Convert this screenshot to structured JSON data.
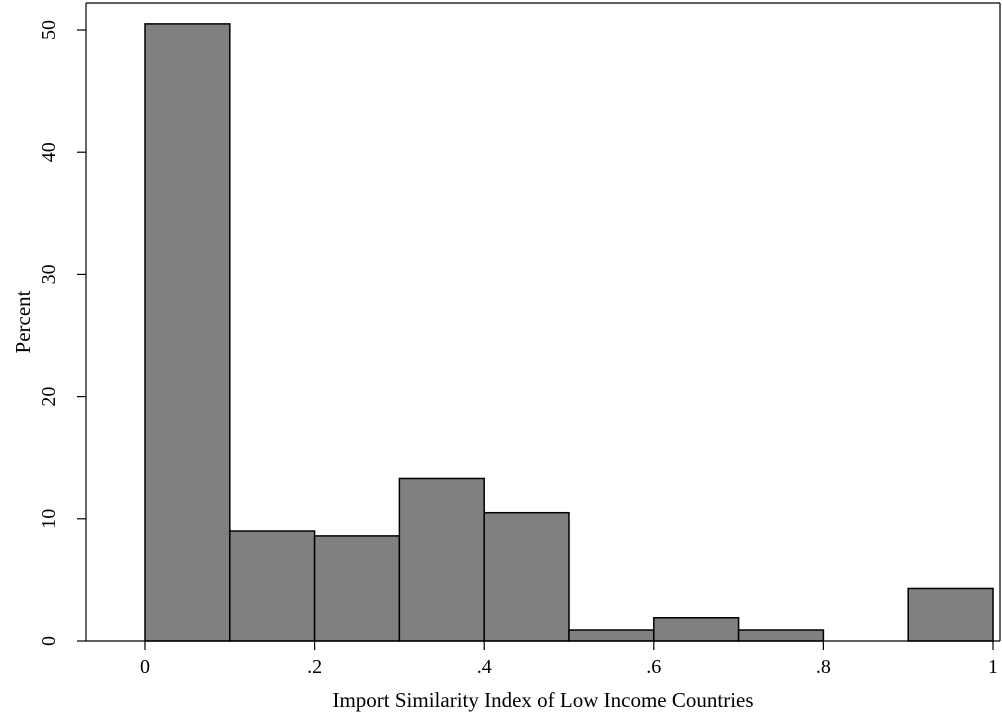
{
  "chart_data": {
    "type": "bar",
    "xlabel": "Import Similarity Index of Low Income Countries",
    "ylabel": "Percent",
    "xlim": [
      -0.17,
      1.0
    ],
    "ylim": [
      0,
      52
    ],
    "x_ticks": [
      0,
      0.2,
      0.4,
      0.6,
      0.8,
      1
    ],
    "x_tick_labels": [
      "0",
      ".2",
      ".4",
      ".6",
      ".8",
      "1"
    ],
    "y_ticks": [
      0,
      10,
      20,
      30,
      40,
      50
    ],
    "y_tick_labels": [
      "0",
      "10",
      "20",
      "30",
      "40",
      "50"
    ],
    "bin_width": 0.1,
    "bins": [
      {
        "x0": 0.0,
        "x1": 0.1,
        "value": 50.5
      },
      {
        "x0": 0.1,
        "x1": 0.2,
        "value": 9.0
      },
      {
        "x0": 0.2,
        "x1": 0.3,
        "value": 8.6
      },
      {
        "x0": 0.3,
        "x1": 0.4,
        "value": 13.3
      },
      {
        "x0": 0.4,
        "x1": 0.5,
        "value": 10.5
      },
      {
        "x0": 0.5,
        "x1": 0.6,
        "value": 0.9
      },
      {
        "x0": 0.6,
        "x1": 0.7,
        "value": 1.9
      },
      {
        "x0": 0.7,
        "x1": 0.8,
        "value": 0.9
      },
      {
        "x0": 0.9,
        "x1": 1.0,
        "value": 4.3
      }
    ],
    "grid": false,
    "legend": "none",
    "colors": {
      "bar_fill": "#808080",
      "bar_stroke": "#000000"
    }
  }
}
